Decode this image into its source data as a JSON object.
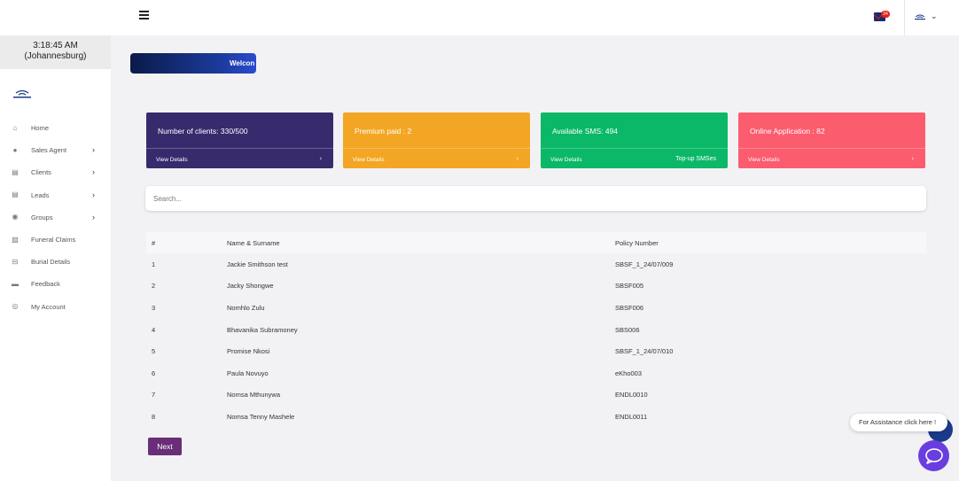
{
  "header": {
    "menu_icon": "hamburger-icon",
    "mail_icon": "mail-icon",
    "mail_badge": "24",
    "profile_icon": "logo-icon",
    "profile_caret": "chevron-down-icon"
  },
  "sidebar": {
    "time": "3:18:45 AM",
    "zone": "(Johannesburg)",
    "items": [
      {
        "label": "Home",
        "icon": "home-icon",
        "chevron": ""
      },
      {
        "label": "Sales Agent",
        "icon": "user-icon",
        "chevron": "›"
      },
      {
        "label": "Clients",
        "icon": "list-icon",
        "chevron": "›"
      },
      {
        "label": "Leads",
        "icon": "list-icon",
        "chevron": "›"
      },
      {
        "label": "Groups",
        "icon": "circle-icon",
        "chevron": "›"
      },
      {
        "label": "Funeral Claims",
        "icon": "edit-icon",
        "chevron": ""
      },
      {
        "label": "Burial Details",
        "icon": "minus-square-icon",
        "chevron": ""
      },
      {
        "label": "Feedback",
        "icon": "comment-icon",
        "chevron": ""
      },
      {
        "label": "My Account",
        "icon": "account-icon",
        "chevron": ""
      }
    ]
  },
  "welcome": {
    "text": "Welcon"
  },
  "cards": [
    {
      "title": "Number of clients: 330/500",
      "link": "View Details",
      "right": "›",
      "color": "#372b6e"
    },
    {
      "title": "Premium paid : 2",
      "link": "View Details",
      "right": "›",
      "color": "#f3a623"
    },
    {
      "title": "Available SMS: 494",
      "link": "View Details",
      "right": "Top-up SMSes",
      "color": "#0bb868"
    },
    {
      "title": "Online Application : 82",
      "link": "View Details",
      "right": "›",
      "color": "#fb5c6e"
    }
  ],
  "search": {
    "placeholder": "Search..."
  },
  "table": {
    "headers": [
      "#",
      "Name & Surname",
      "Policy Number"
    ],
    "rows": [
      [
        "1",
        "Jackie Smithson test",
        "SBSF_1_24/07/009"
      ],
      [
        "2",
        "Jacky Shongwe",
        "SBSF005"
      ],
      [
        "3",
        "Nomhlo Zulu",
        "SBSF006"
      ],
      [
        "4",
        "Bhavanika Subramoney",
        "SBS006"
      ],
      [
        "5",
        "Promise Nkosi",
        "SBSF_1_24/07/010"
      ],
      [
        "6",
        "Paula Novuyo",
        "eKho003"
      ],
      [
        "7",
        "Nomsa Mthunywa",
        "ENDL0010"
      ],
      [
        "8",
        "Nomsa Tenny Mashele",
        "ENDL0011"
      ]
    ]
  },
  "pagination": {
    "next": "Next"
  },
  "assist": {
    "text": "For Assistance click here !"
  },
  "chat_icon": "chat-bubble-icon"
}
